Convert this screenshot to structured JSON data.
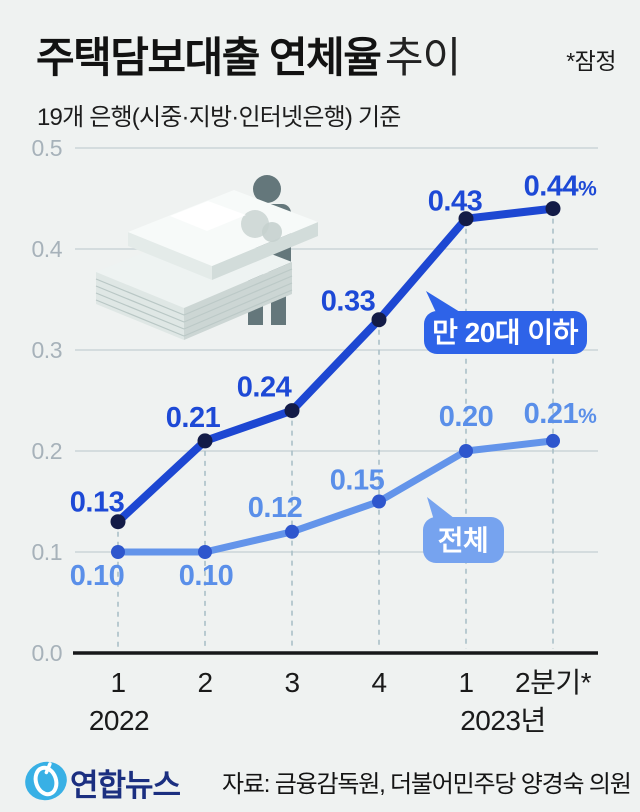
{
  "header": {
    "title": "주택담보대출 연체율",
    "title_suffix": "추이",
    "note": "*잠정",
    "subtitle": "19개 은행(시중·지방·인터넷은행) 기준"
  },
  "footer": {
    "logo_text": "연합뉴스",
    "source": "자료: 금융감독원, 더불어민주당 양경숙 의원"
  },
  "chart_data": {
    "type": "line",
    "title": "주택담보대출 연체율 추이 (%)",
    "categories": [
      "1",
      "2",
      "3",
      "4",
      "1",
      "2분기*"
    ],
    "year_labels": [
      {
        "text": "2022",
        "anchor_index": 0
      },
      {
        "text": "2023년",
        "anchor_index": 4
      }
    ],
    "yticks": [
      "0.0",
      "0.1",
      "0.2",
      "0.3",
      "0.4",
      "0.5"
    ],
    "ylim": [
      0,
      0.5
    ],
    "grid": true,
    "unit": "%",
    "series": [
      {
        "name": "만 20대 이하",
        "values": [
          0.13,
          0.21,
          0.24,
          0.33,
          0.43,
          0.44
        ],
        "labels": [
          "0.13",
          "0.21",
          "0.24",
          "0.33",
          "0.43",
          "0.44%"
        ],
        "line_color": "#1d47d2",
        "dot_color": "#131b47",
        "label_color": "#1d49d6",
        "bubble_color": "#2e63e8"
      },
      {
        "name": "전체",
        "values": [
          0.1,
          0.1,
          0.12,
          0.15,
          0.2,
          0.21
        ],
        "labels": [
          "0.10",
          "0.10",
          "0.12",
          "0.15",
          "0.20",
          "0.21%"
        ],
        "line_color": "#6394ea",
        "dot_color": "#2e56cd",
        "label_color": "#5a8fe9",
        "bubble_color": "#76a3ef"
      }
    ],
    "colors": {
      "background": "#eff2f1",
      "gridline": "#ccd4d7",
      "baseline": "#17181a",
      "guide_dash": "#a6bdc5",
      "ytick_text": "#a7b2ba",
      "xtick_text": "#1a1a1a",
      "illustration_person": "#64777b",
      "logo_blue": "#38b0e5",
      "logo_navy": "#1b2f80"
    }
  }
}
